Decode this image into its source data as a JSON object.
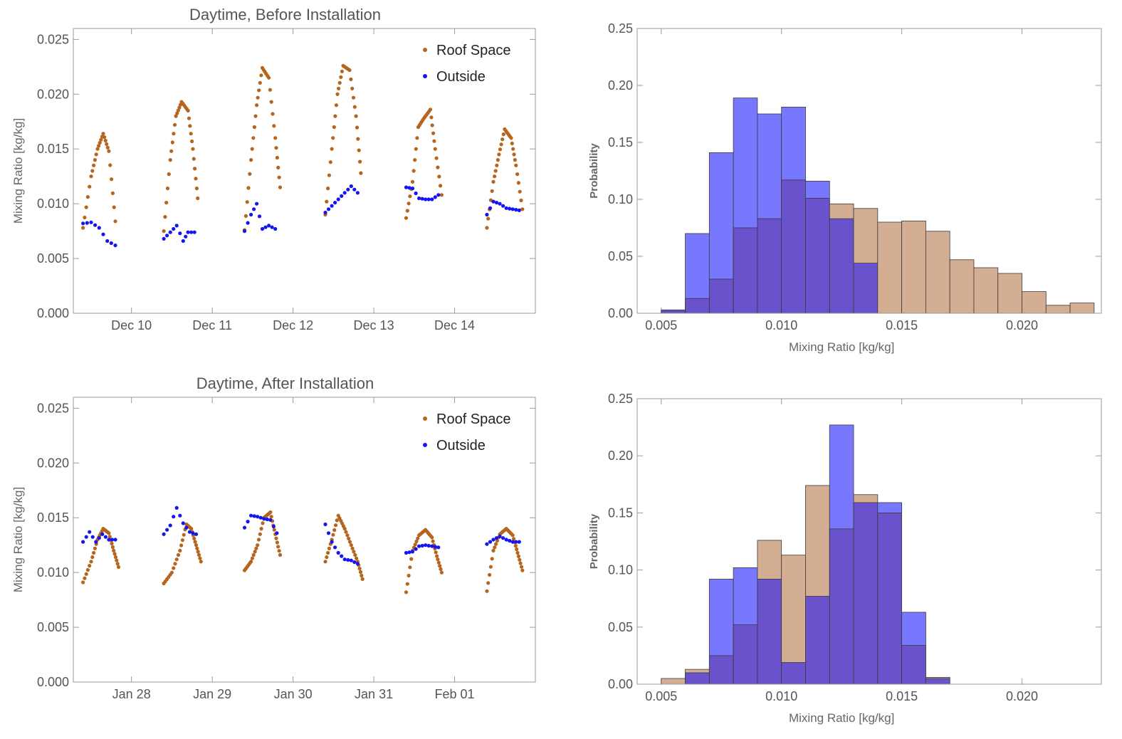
{
  "colors": {
    "roof": "#b5651d",
    "outside": "#1515f0",
    "roof_bar": "#d4ae93",
    "outside_bar": "#7878ff",
    "overlap_bar": "#6a52cc"
  },
  "chart_data": [
    {
      "type": "scatter",
      "title": "Daytime, Before Installation",
      "ylabel": "Mixing Ratio [kg/kg]",
      "xlabel": "",
      "ylim": [
        0,
        0.026
      ],
      "xlim": [
        0.28,
        6.0
      ],
      "x_ticks": [
        {
          "x": 1,
          "label": "Dec 10"
        },
        {
          "x": 2,
          "label": "Dec 11"
        },
        {
          "x": 3,
          "label": "Dec 12"
        },
        {
          "x": 4,
          "label": "Dec 13"
        },
        {
          "x": 5,
          "label": "Dec 14"
        }
      ],
      "y_ticks": [
        {
          "y": 0.0,
          "label": "0.000"
        },
        {
          "y": 0.005,
          "label": "0.005"
        },
        {
          "y": 0.01,
          "label": "0.010"
        },
        {
          "y": 0.015,
          "label": "0.015"
        },
        {
          "y": 0.02,
          "label": "0.020"
        },
        {
          "y": 0.025,
          "label": "0.025"
        }
      ],
      "legend": {
        "position": "top-right",
        "entries": [
          "Roof Space",
          "Outside"
        ]
      },
      "series": [
        {
          "name": "Roof Space",
          "segments": [
            {
              "x": [
                0.4,
                0.5,
                0.58,
                0.65,
                0.72,
                0.8
              ],
              "y": [
                0.0078,
                0.0125,
                0.015,
                0.0164,
                0.0148,
                0.0084
              ]
            },
            {
              "x": [
                1.4,
                1.48,
                1.55,
                1.62,
                1.7,
                1.76,
                1.82
              ],
              "y": [
                0.0075,
                0.014,
                0.018,
                0.0193,
                0.0185,
                0.015,
                0.0105
              ]
            },
            {
              "x": [
                2.4,
                2.48,
                2.55,
                2.62,
                2.7,
                2.78,
                2.84
              ],
              "y": [
                0.0076,
                0.014,
                0.019,
                0.0224,
                0.0215,
                0.016,
                0.0115
              ]
            },
            {
              "x": [
                3.4,
                3.48,
                3.55,
                3.62,
                3.7,
                3.78,
                3.84
              ],
              "y": [
                0.009,
                0.015,
                0.02,
                0.0226,
                0.0222,
                0.018,
                0.0128
              ]
            },
            {
              "x": [
                4.4,
                4.48,
                4.55,
                4.62,
                4.7,
                4.76,
                4.84
              ],
              "y": [
                0.0087,
                0.012,
                0.017,
                0.0178,
                0.0186,
                0.015,
                0.0108
              ]
            },
            {
              "x": [
                5.4,
                5.48,
                5.55,
                5.62,
                5.7,
                5.76,
                5.84
              ],
              "y": [
                0.0078,
                0.012,
                0.0145,
                0.0168,
                0.016,
                0.0135,
                0.0095
              ]
            }
          ]
        },
        {
          "name": "Outside",
          "segments": [
            {
              "x": [
                0.4,
                0.5,
                0.6,
                0.7,
                0.8
              ],
              "y": [
                0.0082,
                0.0083,
                0.0078,
                0.0066,
                0.0062
              ]
            },
            {
              "x": [
                1.4,
                1.48,
                1.56,
                1.64,
                1.7,
                1.78
              ],
              "y": [
                0.0068,
                0.0074,
                0.008,
                0.0066,
                0.0074,
                0.0074
              ]
            },
            {
              "x": [
                2.4,
                2.48,
                2.55,
                2.62,
                2.7,
                2.78
              ],
              "y": [
                0.0075,
                0.009,
                0.01,
                0.0077,
                0.008,
                0.0077
              ]
            },
            {
              "x": [
                3.4,
                3.48,
                3.56,
                3.64,
                3.72,
                3.8
              ],
              "y": [
                0.0092,
                0.0098,
                0.0104,
                0.011,
                0.0116,
                0.011
              ]
            },
            {
              "x": [
                4.4,
                4.48,
                4.56,
                4.64,
                4.72,
                4.8
              ],
              "y": [
                0.0115,
                0.0114,
                0.0105,
                0.0104,
                0.0104,
                0.0108
              ]
            },
            {
              "x": [
                5.4,
                5.48,
                5.56,
                5.64,
                5.72,
                5.8
              ],
              "y": [
                0.009,
                0.0102,
                0.01,
                0.0096,
                0.0095,
                0.0094
              ]
            }
          ]
        }
      ]
    },
    {
      "type": "bar",
      "subtype": "histogram",
      "title": "",
      "xlabel": "Mixing Ratio [kg/kg]",
      "ylabel": "Probability",
      "xlim": [
        0.004,
        0.0233
      ],
      "ylim": [
        0,
        0.25
      ],
      "bin_width": 0.001,
      "bin_start": 0.005,
      "x_ticks": [
        {
          "x": 0.005,
          "label": "0.005"
        },
        {
          "x": 0.01,
          "label": "0.010"
        },
        {
          "x": 0.015,
          "label": "0.015"
        },
        {
          "x": 0.02,
          "label": "0.020"
        }
      ],
      "y_ticks": [
        {
          "y": 0.0,
          "label": "0.00"
        },
        {
          "y": 0.05,
          "label": "0.05"
        },
        {
          "y": 0.1,
          "label": "0.10"
        },
        {
          "y": 0.15,
          "label": "0.15"
        },
        {
          "y": 0.2,
          "label": "0.20"
        },
        {
          "y": 0.25,
          "label": "0.25"
        }
      ],
      "series": [
        {
          "name": "Roof Space",
          "values": [
            0.002,
            0.013,
            0.03,
            0.075,
            0.083,
            0.117,
            0.101,
            0.096,
            0.092,
            0.08,
            0.081,
            0.072,
            0.047,
            0.04,
            0.035,
            0.019,
            0.007,
            0.009
          ]
        },
        {
          "name": "Outside",
          "values": [
            0.003,
            0.07,
            0.141,
            0.189,
            0.175,
            0.181,
            0.116,
            0.083,
            0.044,
            0,
            0,
            0,
            0,
            0,
            0,
            0,
            0,
            0
          ]
        }
      ]
    },
    {
      "type": "scatter",
      "title": "Daytime, After Installation",
      "ylabel": "Mixing Ratio [kg/kg]",
      "xlabel": "",
      "ylim": [
        0,
        0.026
      ],
      "xlim": [
        0.28,
        6.0
      ],
      "x_ticks": [
        {
          "x": 1,
          "label": "Jan 28"
        },
        {
          "x": 2,
          "label": "Jan 29"
        },
        {
          "x": 3,
          "label": "Jan 30"
        },
        {
          "x": 4,
          "label": "Jan 31"
        },
        {
          "x": 5,
          "label": "Feb 01"
        }
      ],
      "y_ticks": [
        {
          "y": 0.0,
          "label": "0.000"
        },
        {
          "y": 0.005,
          "label": "0.005"
        },
        {
          "y": 0.01,
          "label": "0.010"
        },
        {
          "y": 0.015,
          "label": "0.015"
        },
        {
          "y": 0.02,
          "label": "0.020"
        },
        {
          "y": 0.025,
          "label": "0.025"
        }
      ],
      "legend": {
        "position": "top-right",
        "entries": [
          "Roof Space",
          "Outside"
        ]
      },
      "series": [
        {
          "name": "Roof Space",
          "segments": [
            {
              "x": [
                0.4,
                0.5,
                0.58,
                0.65,
                0.72,
                0.78,
                0.84
              ],
              "y": [
                0.0091,
                0.011,
                0.013,
                0.014,
                0.0136,
                0.012,
                0.0105
              ]
            },
            {
              "x": [
                1.4,
                1.5,
                1.6,
                1.68,
                1.74,
                1.8,
                1.86
              ],
              "y": [
                0.009,
                0.01,
                0.012,
                0.0144,
                0.014,
                0.0125,
                0.011
              ]
            },
            {
              "x": [
                2.4,
                2.48,
                2.56,
                2.64,
                2.72,
                2.78,
                2.84
              ],
              "y": [
                0.0102,
                0.011,
                0.0125,
                0.015,
                0.0155,
                0.0135,
                0.0116
              ]
            },
            {
              "x": [
                3.4,
                3.48,
                3.56,
                3.64,
                3.72,
                3.8,
                3.86
              ],
              "y": [
                0.011,
                0.013,
                0.0152,
                0.014,
                0.0125,
                0.011,
                0.0094
              ]
            },
            {
              "x": [
                4.4,
                4.48,
                4.56,
                4.64,
                4.72,
                4.78,
                4.84
              ],
              "y": [
                0.0082,
                0.012,
                0.0134,
                0.0139,
                0.0132,
                0.0115,
                0.01
              ]
            },
            {
              "x": [
                5.4,
                5.48,
                5.56,
                5.64,
                5.72,
                5.78,
                5.84
              ],
              "y": [
                0.0083,
                0.012,
                0.0135,
                0.014,
                0.0134,
                0.0118,
                0.0102
              ]
            }
          ]
        },
        {
          "name": "Outside",
          "segments": [
            {
              "x": [
                0.4,
                0.48,
                0.56,
                0.64,
                0.72,
                0.8
              ],
              "y": [
                0.0128,
                0.0137,
                0.0128,
                0.0135,
                0.013,
                0.013
              ]
            },
            {
              "x": [
                1.4,
                1.48,
                1.56,
                1.64,
                1.72,
                1.8
              ],
              "y": [
                0.0135,
                0.0143,
                0.0159,
                0.0145,
                0.0137,
                0.0135
              ]
            },
            {
              "x": [
                2.4,
                2.48,
                2.56,
                2.64,
                2.72,
                2.8
              ],
              "y": [
                0.0141,
                0.0152,
                0.0151,
                0.0149,
                0.0148,
                0.0136
              ]
            },
            {
              "x": [
                3.4,
                3.48,
                3.56,
                3.64,
                3.72,
                3.8
              ],
              "y": [
                0.0144,
                0.0128,
                0.0118,
                0.0112,
                0.0111,
                0.0108
              ]
            },
            {
              "x": [
                4.4,
                4.48,
                4.56,
                4.64,
                4.72,
                4.8
              ],
              "y": [
                0.0118,
                0.0119,
                0.0124,
                0.0125,
                0.0124,
                0.0123
              ]
            },
            {
              "x": [
                5.4,
                5.48,
                5.56,
                5.64,
                5.72,
                5.8
              ],
              "y": [
                0.0126,
                0.013,
                0.0133,
                0.013,
                0.0128,
                0.0128
              ]
            }
          ]
        }
      ]
    },
    {
      "type": "bar",
      "subtype": "histogram",
      "title": "",
      "xlabel": "Mixing Ratio [kg/kg]",
      "ylabel": "Probability",
      "xlim": [
        0.004,
        0.0233
      ],
      "ylim": [
        0,
        0.25
      ],
      "bin_width": 0.001,
      "bin_start": 0.005,
      "x_ticks": [
        {
          "x": 0.005,
          "label": "0.005"
        },
        {
          "x": 0.01,
          "label": "0.010"
        },
        {
          "x": 0.015,
          "label": "0.015"
        },
        {
          "x": 0.02,
          "label": "0.020"
        }
      ],
      "y_ticks": [
        {
          "y": 0.0,
          "label": "0.00"
        },
        {
          "y": 0.05,
          "label": "0.05"
        },
        {
          "y": 0.1,
          "label": "0.10"
        },
        {
          "y": 0.15,
          "label": "0.15"
        },
        {
          "y": 0.2,
          "label": "0.20"
        },
        {
          "y": 0.25,
          "label": "0.25"
        }
      ],
      "series": [
        {
          "name": "Roof Space",
          "values": [
            0.005,
            0.013,
            0.025,
            0.052,
            0.126,
            0.113,
            0.174,
            0.136,
            0.166,
            0.15,
            0.034,
            0.006
          ]
        },
        {
          "name": "Outside",
          "values": [
            0,
            0.01,
            0.092,
            0.102,
            0.092,
            0.019,
            0.077,
            0.227,
            0.159,
            0.159,
            0.063,
            0.005
          ]
        }
      ]
    }
  ]
}
